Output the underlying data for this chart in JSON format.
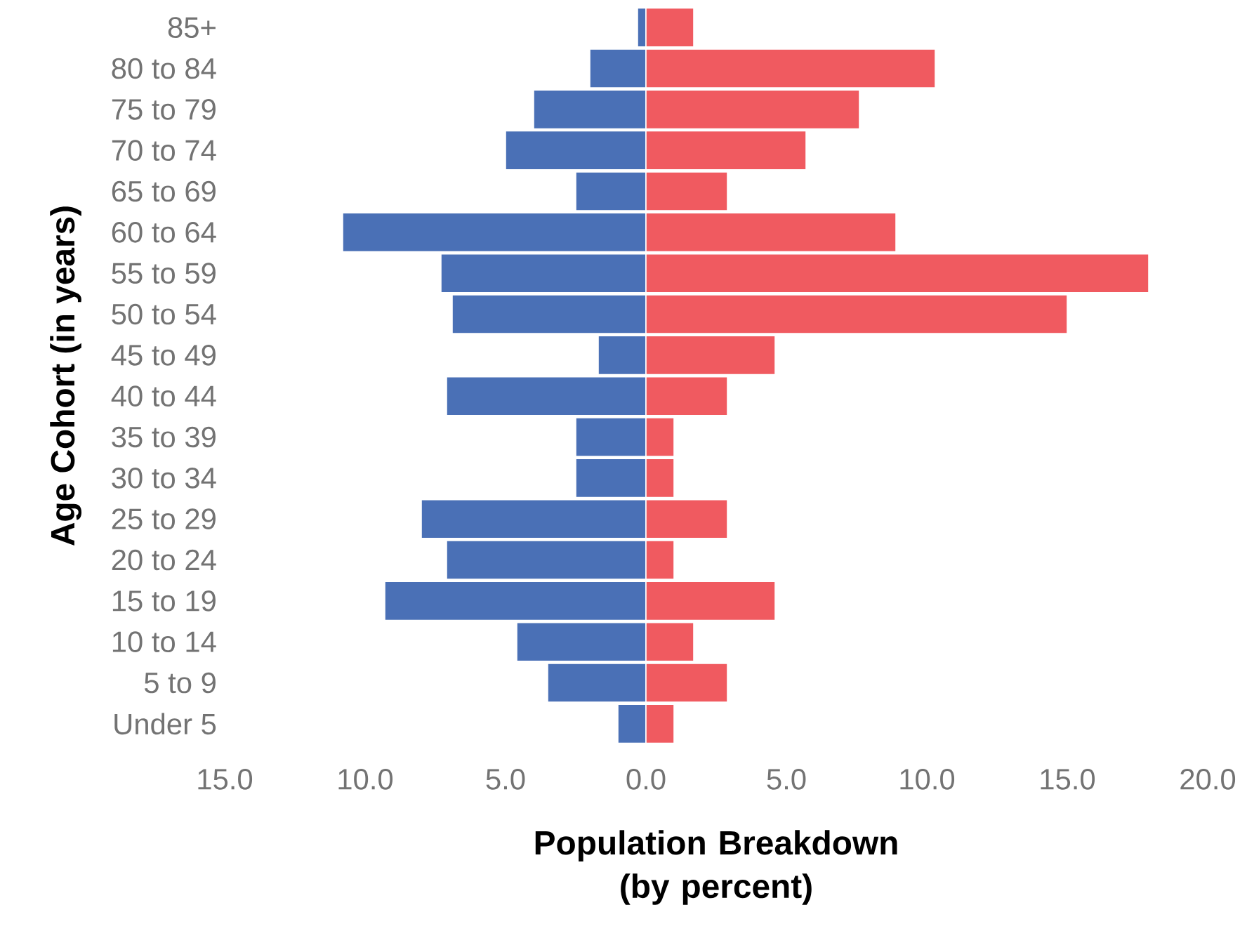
{
  "chart_data": {
    "type": "bar",
    "orientation": "horizontal",
    "xlabel": "Population Breakdown (by percent)",
    "ylabel": "Age Cohort (in years)",
    "categories": [
      "85+",
      "80 to 84",
      "75 to 79",
      "70 to 74",
      "65 to 69",
      "60 to 64",
      "55 to 59",
      "50 to 54",
      "45 to 49",
      "40 to 44",
      "35 to 39",
      "30 to 34",
      "25 to 29",
      "20 to 24",
      "15 to 19",
      "10 to 14",
      "5 to 9",
      "Under 5"
    ],
    "series": [
      {
        "color": "#4a70b6",
        "values": [
          -0.3,
          -2.0,
          -4.0,
          -5.0,
          -2.5,
          -10.8,
          -7.3,
          -6.9,
          -1.7,
          -7.1,
          -2.5,
          -2.5,
          -8.0,
          -7.1,
          -9.3,
          -4.6,
          -3.5,
          -1.0
        ]
      },
      {
        "color": "#f05a60",
        "values": [
          1.7,
          10.3,
          7.6,
          5.7,
          2.9,
          8.9,
          17.9,
          15.0,
          4.6,
          2.9,
          1.0,
          1.0,
          2.9,
          1.0,
          4.6,
          1.7,
          2.9,
          1.0
        ]
      }
    ],
    "xlim": [
      -15,
      20
    ],
    "xticks": [
      {
        "value": -15,
        "label": "15.0"
      },
      {
        "value": -10,
        "label": "10.0"
      },
      {
        "value": -5,
        "label": "5.0"
      },
      {
        "value": 0,
        "label": "0.0"
      },
      {
        "value": 5,
        "label": "5.0"
      },
      {
        "value": 10,
        "label": "10.0"
      },
      {
        "value": 15,
        "label": "15.0"
      },
      {
        "value": 20,
        "label": "20.0"
      }
    ],
    "stacked": true,
    "grid": false
  }
}
